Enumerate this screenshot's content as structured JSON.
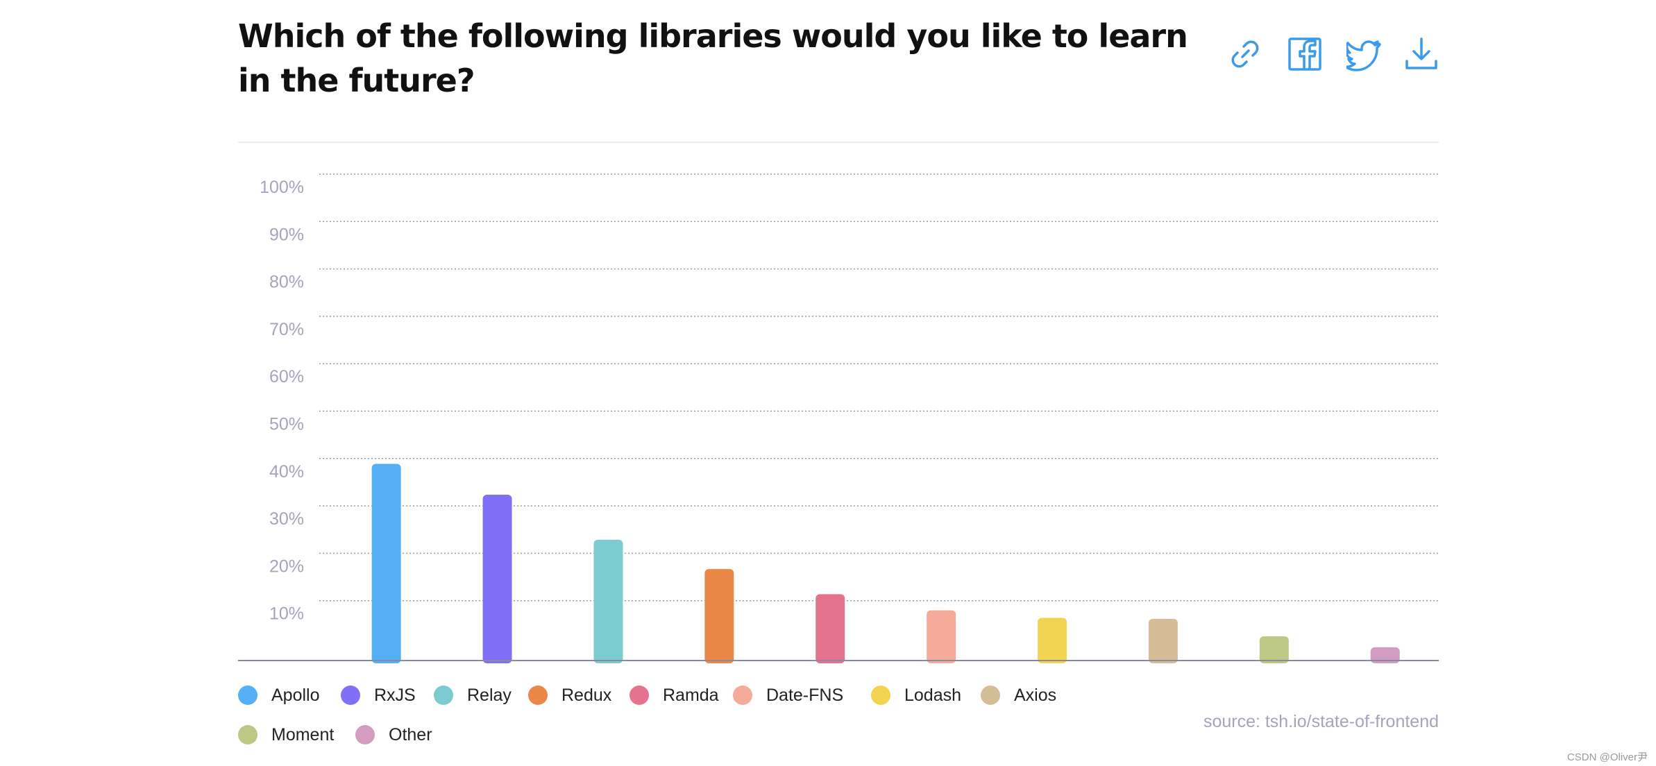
{
  "title": "Which of the following libraries would you like to learn in the future?",
  "share": {
    "link_icon": "link-icon",
    "facebook_icon": "facebook-icon",
    "twitter_icon": "twitter-icon",
    "download_icon": "download-icon",
    "icon_color": "#3c9be8"
  },
  "chart_data": {
    "type": "bar",
    "title": "Which of the following libraries would you like to learn in the future?",
    "xlabel": "",
    "ylabel": "",
    "ylim": [
      0,
      100
    ],
    "y_ticks": [
      10,
      20,
      30,
      40,
      50,
      60,
      70,
      80,
      90,
      100
    ],
    "y_tick_labels": [
      "10%",
      "20%",
      "30%",
      "40%",
      "50%",
      "60%",
      "70%",
      "80%",
      "90%",
      "100%"
    ],
    "grid": true,
    "legend_position": "bottom-left",
    "categories": [
      "Apollo",
      "RxJS",
      "Relay",
      "Redux",
      "Ramda",
      "Date-FNS",
      "Lodash",
      "Axios",
      "Moment",
      "Other"
    ],
    "values": [
      41.5,
      35,
      25.5,
      19.3,
      14,
      10.6,
      9,
      8.8,
      5.1,
      2.8
    ],
    "colors": [
      "#55aff5",
      "#8170f5",
      "#7ccbd0",
      "#ec8847",
      "#e5738e",
      "#f5ab9a",
      "#f3d452",
      "#d5bd98",
      "#bcc884",
      "#d29dc1"
    ]
  },
  "source": "source: tsh.io/state-of-frontend",
  "watermark": "CSDN @Oliver尹"
}
